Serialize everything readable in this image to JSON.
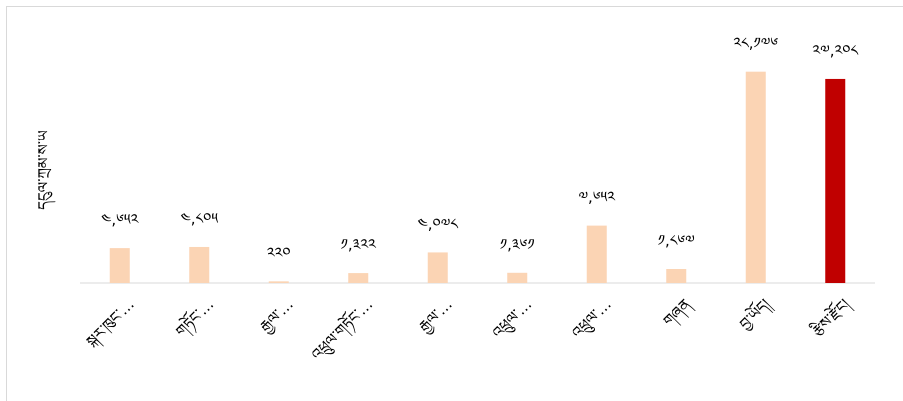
{
  "chart_data": {
    "type": "bar",
    "y_label": "དངུལ་ཀྲམ་ས་ཡ",
    "categories": [
      "སྐར་ཁུང་…",
      "གཏོང་…",
      "རྒྱལ་…",
      "འཕྲུལ་གཏོང་…",
      "རྒྱལ་…",
      "འཕྲུལ་…",
      "འཕྲུལ་…",
      "གཞན",
      "བྱ་ཡོད།",
      "རྩིས་རྫོང།"
    ],
    "values": [
      4652,
      4805,
      220,
      1322,
      4078,
      1361,
      7652,
      1867,
      28176,
      27208
    ],
    "value_labels": [
      "༤,༦༥༢",
      "༤,༨༠༥",
      "༢༢༠",
      "༡,༣༢༢",
      "༤,༠༧༨",
      "༡,༣༦༡",
      "༧,༦༥༢",
      "༡,༨༦༧",
      "༢༨,༡༧༦",
      "༢༧,༢༠༨"
    ],
    "colors": [
      "#fbd4b4",
      "#fbd4b4",
      "#fbd4b4",
      "#fbd4b4",
      "#fbd4b4",
      "#fbd4b4",
      "#fbd4b4",
      "#fbd4b4",
      "#fbd4b4",
      "#c00000"
    ],
    "ylim": [
      0,
      30000
    ]
  }
}
